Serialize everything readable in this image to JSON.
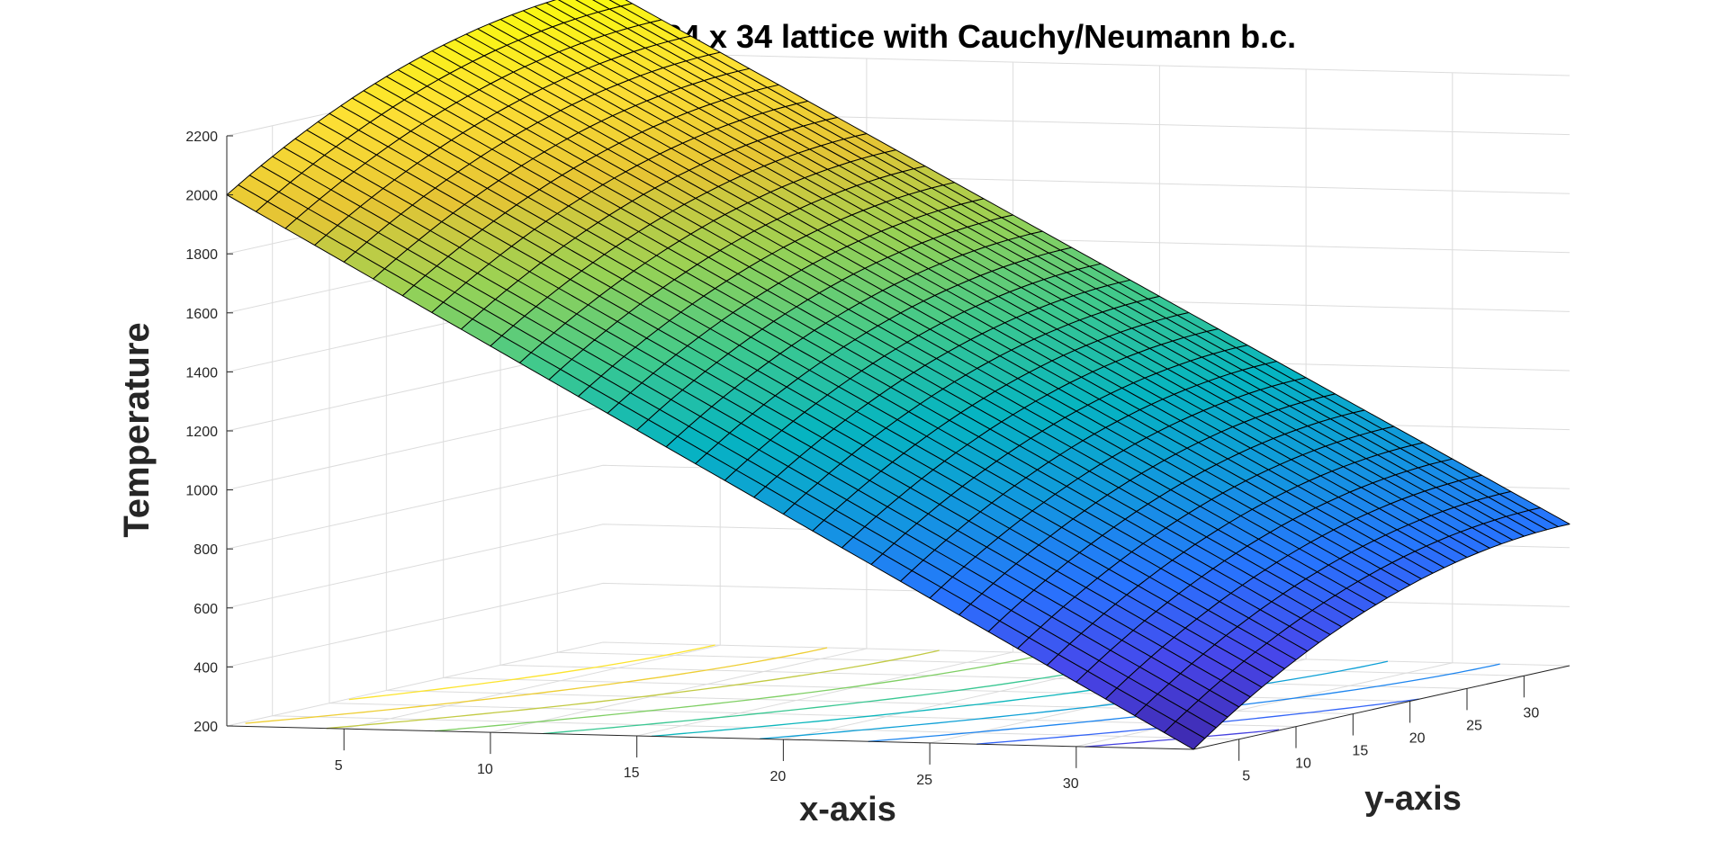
{
  "chart_data": {
    "type": "surface3d",
    "title": "T(x,y) in a 34 x 34 lattice with Cauchy/Neumann b.c.",
    "xlabel": "x-axis",
    "ylabel": "y-axis",
    "zlabel": "Temperature",
    "x_range": [
      1,
      34
    ],
    "y_range": [
      1,
      34
    ],
    "z_range": [
      200,
      2200
    ],
    "x_ticks": [
      5,
      10,
      15,
      20,
      25,
      30
    ],
    "y_ticks": [
      5,
      10,
      15,
      20,
      25,
      30
    ],
    "z_ticks": [
      200,
      400,
      600,
      800,
      1000,
      1200,
      1400,
      1600,
      1800,
      2000,
      2200
    ],
    "grid": true,
    "lattice_size": 34,
    "surface_shape": "parabolic in y, maximum at y = 34",
    "surface_points": [
      {
        "x": 1,
        "y": 1,
        "T": 2000
      },
      {
        "x": 1,
        "y": 34,
        "T": 2420
      },
      {
        "x": 34,
        "y": 1,
        "T": 200
      },
      {
        "x": 34,
        "y": 34,
        "T": 680
      }
    ],
    "contour_plot": "projected on base plane",
    "colormap": "parula"
  }
}
